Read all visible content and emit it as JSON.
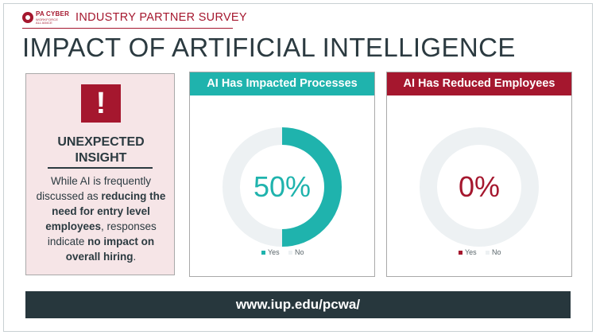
{
  "header": {
    "logo_line1": "PA CYBER",
    "logo_line2": "WORKFORCE ALLIANCE",
    "survey_label": "INDUSTRY PARTNER SURVEY"
  },
  "page_title": "IMPACT OF ARTIFICIAL INTELLIGENCE",
  "insight": {
    "icon_glyph": "!",
    "heading_line1": "UNEXPECTED",
    "heading_line2": "INSIGHT",
    "body_1": "While AI is frequently discussed as ",
    "body_bold_1": "reducing the need for entry level employees",
    "body_2": ", responses indicate ",
    "body_bold_2": "no impact on overall hiring",
    "body_3": "."
  },
  "chart_data": [
    {
      "type": "pie",
      "title": "AI Has Impacted Processes",
      "center_label": "50%",
      "categories": [
        "Yes",
        "No"
      ],
      "values": [
        50,
        50
      ],
      "colors": [
        "#1fb3ad",
        "#edf1f3"
      ],
      "legend_placement": "bottom"
    },
    {
      "type": "pie",
      "title": "AI Has Reduced Employees",
      "center_label": "0%",
      "categories": [
        "Yes",
        "No"
      ],
      "values": [
        0,
        100
      ],
      "colors": [
        "#a5172e",
        "#edf1f3"
      ],
      "legend_placement": "bottom"
    }
  ],
  "footer": {
    "url": "www.iup.edu/pcwa/"
  },
  "colors": {
    "brand_red": "#a5172e",
    "teal": "#1fb3ad",
    "dark_slate": "#27373d",
    "panel_pink": "#f6e5e7"
  }
}
